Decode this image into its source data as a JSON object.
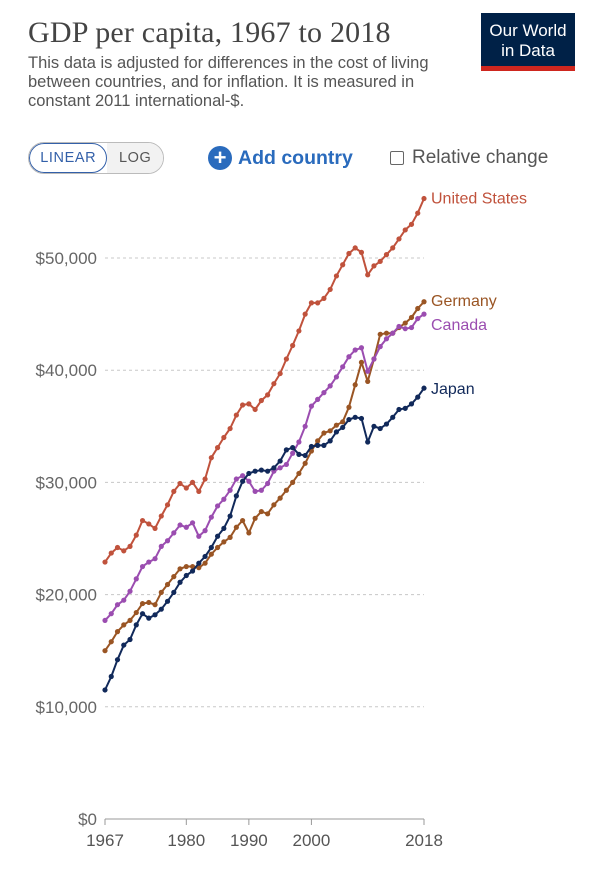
{
  "header": {
    "title": "GDP per capita, 1967 to 2018",
    "subtitle": "This data is adjusted for differences in the cost of living between countries, and for inflation. It is measured in constant 2011 international-$.",
    "logo_line1": "Our World",
    "logo_line2": "in Data"
  },
  "controls": {
    "linear_label": "LINEAR",
    "log_label": "LOG",
    "add_country_label": "Add country",
    "relative_change_label": "Relative change"
  },
  "colors": {
    "United States": "#c0523c",
    "Germany": "#9a5524",
    "Canada": "#9b4db0",
    "Japan": "#11295a"
  },
  "chart_data": {
    "type": "line",
    "title": "GDP per capita, 1967 to 2018",
    "ylim": [
      0,
      55000
    ],
    "xlim": [
      1967,
      2018
    ],
    "y_ticks": [
      0,
      10000,
      20000,
      30000,
      40000,
      50000
    ],
    "y_tick_labels": [
      "$0",
      "$10,000",
      "$20,000",
      "$30,000",
      "$40,000",
      "$50,000"
    ],
    "x_ticks": [
      1967,
      1980,
      1990,
      2000,
      2018
    ],
    "x_tick_labels": [
      "1967",
      "1980",
      "1990",
      "2000",
      "2018"
    ],
    "grid": "horizontal dotted",
    "legend": "line-end labels",
    "x": [
      1967,
      1968,
      1969,
      1970,
      1971,
      1972,
      1973,
      1974,
      1975,
      1976,
      1977,
      1978,
      1979,
      1980,
      1981,
      1982,
      1983,
      1984,
      1985,
      1986,
      1987,
      1988,
      1989,
      1990,
      1991,
      1992,
      1993,
      1994,
      1995,
      1996,
      1997,
      1998,
      1999,
      2000,
      2001,
      2002,
      2003,
      2004,
      2005,
      2006,
      2007,
      2008,
      2009,
      2010,
      2011,
      2012,
      2013,
      2014,
      2015,
      2016,
      2017,
      2018
    ],
    "series": [
      {
        "name": "United States",
        "values": [
          22900,
          23700,
          24200,
          23900,
          24300,
          25300,
          26600,
          26300,
          25900,
          27000,
          28000,
          29200,
          29900,
          29500,
          30000,
          29200,
          30300,
          32200,
          33100,
          34000,
          34800,
          36000,
          36900,
          37000,
          36500,
          37300,
          37800,
          38800,
          39700,
          41000,
          42200,
          43500,
          45000,
          46000,
          46000,
          46400,
          47200,
          48400,
          49400,
          50400,
          50900,
          50500,
          48500,
          49300,
          49700,
          50300,
          50900,
          51700,
          52500,
          53000,
          54000,
          55300
        ]
      },
      {
        "name": "Germany",
        "values": [
          15000,
          15800,
          16700,
          17300,
          17700,
          18400,
          19200,
          19300,
          19100,
          20200,
          20900,
          21600,
          22300,
          22500,
          22500,
          22400,
          22800,
          23600,
          24200,
          24700,
          25100,
          26000,
          26600,
          25500,
          26800,
          27400,
          27200,
          28000,
          28600,
          29300,
          30000,
          30800,
          31700,
          32800,
          33700,
          34400,
          34600,
          35100,
          35400,
          36700,
          38700,
          40700,
          39000,
          41000,
          43200,
          43300,
          43300,
          43800,
          44200,
          44700,
          45500,
          46100
        ]
      },
      {
        "name": "Canada",
        "values": [
          17700,
          18300,
          19100,
          19500,
          20300,
          21400,
          22500,
          22900,
          23200,
          24300,
          24800,
          25500,
          26200,
          26000,
          26400,
          25200,
          25700,
          26900,
          27900,
          28500,
          29300,
          30300,
          30600,
          30100,
          29200,
          29300,
          29900,
          31000,
          31300,
          31600,
          32600,
          33600,
          35000,
          36800,
          37400,
          38000,
          38600,
          39400,
          40300,
          41200,
          41800,
          42000,
          39900,
          41000,
          42100,
          42800,
          43300,
          43900,
          43700,
          43800,
          44600,
          45000
        ]
      },
      {
        "name": "Japan",
        "values": [
          11500,
          12700,
          14200,
          15500,
          16000,
          17300,
          18300,
          17900,
          18200,
          18700,
          19400,
          20200,
          21100,
          21700,
          22100,
          22800,
          23400,
          24200,
          25200,
          25900,
          27000,
          28800,
          30100,
          30800,
          31000,
          31100,
          31000,
          31300,
          31900,
          32900,
          33100,
          32500,
          32400,
          33200,
          33300,
          33300,
          33700,
          34500,
          34900,
          35600,
          35800,
          35700,
          33600,
          35000,
          34800,
          35200,
          35800,
          36500,
          36600,
          37000,
          37600,
          38400
        ]
      }
    ]
  }
}
